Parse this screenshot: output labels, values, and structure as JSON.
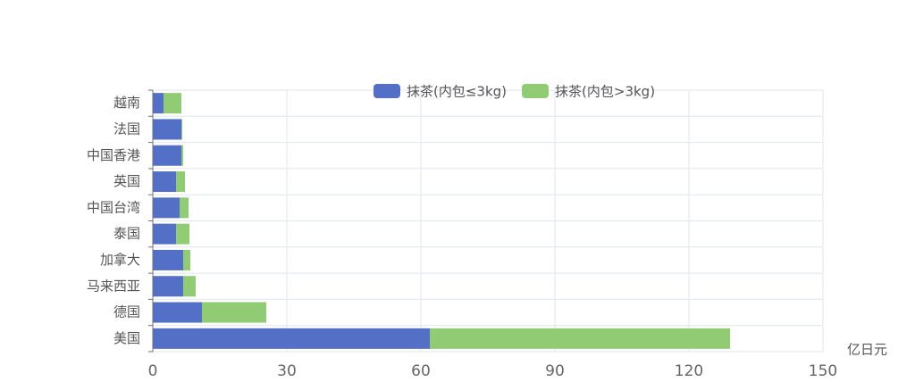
{
  "chart_data": {
    "type": "stacked-bar-horizontal",
    "x_label": "亿日元",
    "categories": [
      "越南",
      "法国",
      "中国香港",
      "英国",
      "中国台湾",
      "泰国",
      "加拿大",
      "马来西亚",
      "德国",
      "美国"
    ],
    "series": [
      {
        "name": "抹茶(内包≤3kg)",
        "color": "#5470c6",
        "values": [
          2.4,
          6.4,
          6.4,
          5.2,
          6.0,
          5.2,
          6.8,
          6.8,
          11.0,
          62.0
        ]
      },
      {
        "name": "抹茶(内包>3kg)",
        "color": "#91cc75",
        "values": [
          4.0,
          0.2,
          0.4,
          2.0,
          2.0,
          3.0,
          1.6,
          2.8,
          14.4,
          67.2
        ]
      }
    ],
    "xlim": [
      0,
      150
    ],
    "xticks": [
      0,
      30,
      60,
      90,
      120,
      150
    ],
    "grid": true,
    "legend": "top"
  }
}
